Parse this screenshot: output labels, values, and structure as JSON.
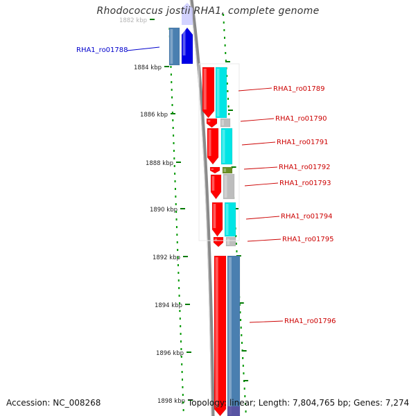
{
  "title": "Rhodococcus jostii RHA1, complete genome",
  "footer": {
    "accession": "Accession: NC_008268",
    "summary": "Topology: linear; Length: 7,804,765 bp; Genes: 7,274"
  },
  "ruler": {
    "ticks": [
      "1882 kbp",
      "1884 kbp",
      "1886 kbp",
      "1888 kbp",
      "1890 kbp",
      "1892 kbp",
      "1894 kbp",
      "1896 kbp",
      "1898 kbp"
    ]
  },
  "genes": [
    {
      "id": "RHA1_ro01788",
      "strand": "-",
      "color": "#0000e6",
      "cds_color": "#4a7fb0"
    },
    {
      "id": "RHA1_ro01789",
      "strand": "+",
      "color": "#ff0000",
      "cds_color": "#00e5e5"
    },
    {
      "id": "RHA1_ro01790",
      "strand": "+",
      "color": "#ff0000",
      "cds_color": "#bdbdbd"
    },
    {
      "id": "RHA1_ro01791",
      "strand": "+",
      "color": "#ff0000",
      "cds_color": "#00e5e5"
    },
    {
      "id": "RHA1_ro01792",
      "strand": "+",
      "color": "#ff0000",
      "cds_color": "#6b8e23"
    },
    {
      "id": "RHA1_ro01793",
      "strand": "+",
      "color": "#ff0000",
      "cds_color": "#bdbdbd"
    },
    {
      "id": "RHA1_ro01794",
      "strand": "+",
      "color": "#ff0000",
      "cds_color": "#00e5e5"
    },
    {
      "id": "RHA1_ro01795",
      "strand": "+",
      "color": "#ff0000",
      "cds_color": "#bdbdbd"
    },
    {
      "id": "RHA1_ro01796",
      "strand": "+",
      "color": "#ff0000",
      "cds_color": "#4a7fb0"
    }
  ],
  "colors": {
    "axis": "#8a8a8a",
    "ruler_dots": "#009900",
    "label_forward": "#cc0000",
    "label_reverse": "#0000cc"
  }
}
